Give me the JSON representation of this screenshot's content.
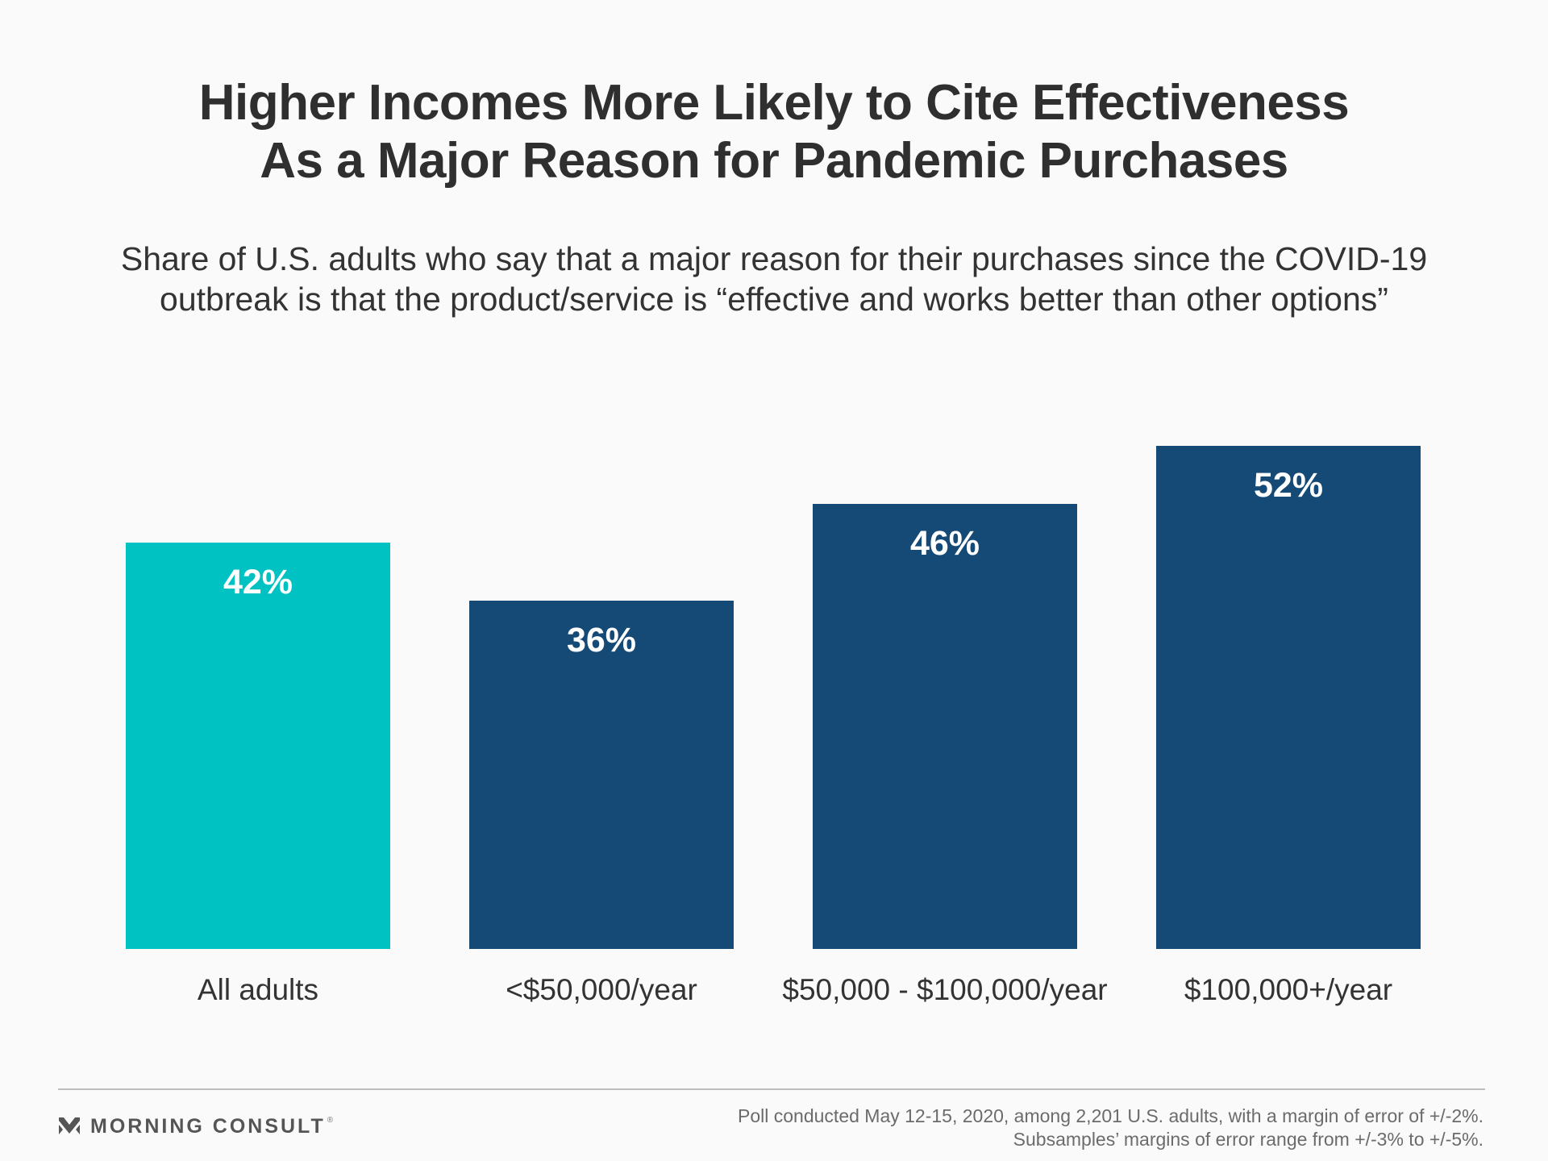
{
  "header": {
    "title_line1": "Higher Incomes More Likely to Cite Effectiveness",
    "title_line2": "As a Major Reason for Pandemic Purchases",
    "subtitle_line1": "Share of U.S. adults who say that a major reason for their purchases since the COVID-19",
    "subtitle_line2": "outbreak is that the product/service is “effective and works better than other options”"
  },
  "chart_data": {
    "type": "bar",
    "title": "Higher Incomes More Likely to Cite Effectiveness As a Major Reason for Pandemic Purchases",
    "subtitle": "Share of U.S. adults who say that a major reason for their purchases since the COVID-19 outbreak is that the product/service is “effective and works better than other options”",
    "categories": [
      "All adults",
      "<$50,000/year",
      "$50,000 - $100,000/year",
      "$100,000+/year"
    ],
    "values": [
      42,
      36,
      46,
      52
    ],
    "value_labels": [
      "42%",
      "36%",
      "46%",
      "52%"
    ],
    "unit": "%",
    "ylim": [
      0,
      52
    ],
    "grid": false,
    "colors": [
      "#00c2c2",
      "#154a77",
      "#154a77",
      "#154a77"
    ],
    "label_color": "#ffffff"
  },
  "footer": {
    "brand": "MORNING CONSULT",
    "brand_icon": "morning-consult-logo-icon",
    "note_line1": "Poll conducted May 12-15, 2020, among 2,201 U.S. adults, with a margin of error of +/-2%.",
    "note_line2": "Subsamples’ margins of error range from +/-3% to +/-5%."
  }
}
